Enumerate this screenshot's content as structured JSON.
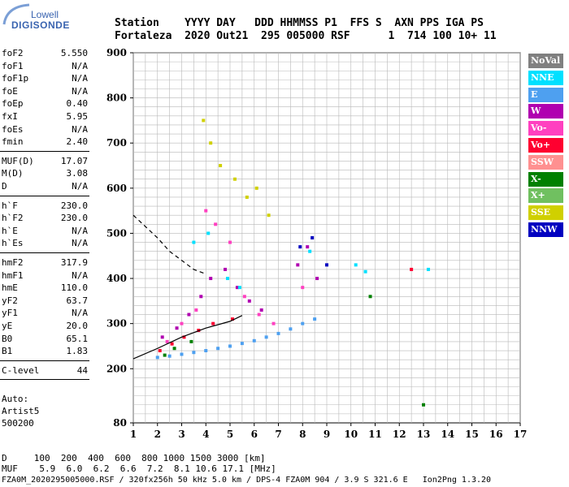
{
  "logo": {
    "line1": "Lowell",
    "line2": "DIGISONDE"
  },
  "header": {
    "labels_line": "Station    YYYY DAY   DDD HHMMSS P1  FFS S  AXN PPS IGA PS",
    "values_line": "Fortaleza  2020 Out21  295 005000 RSF      1  714 100 10+ 11"
  },
  "params": [
    {
      "group": [
        {
          "name": "foF2",
          "value": "5.550"
        },
        {
          "name": "foF1",
          "value": "N/A"
        },
        {
          "name": "foF1p",
          "value": "N/A"
        },
        {
          "name": "foE",
          "value": "N/A"
        },
        {
          "name": "foEp",
          "value": "0.40"
        },
        {
          "name": "fxI",
          "value": "5.95"
        },
        {
          "name": "foEs",
          "value": "N/A"
        },
        {
          "name": "fmin",
          "value": "2.40"
        }
      ]
    },
    {
      "group": [
        {
          "name": "MUF(D)",
          "value": "17.07"
        },
        {
          "name": "M(D)",
          "value": "3.08"
        },
        {
          "name": "D",
          "value": "N/A"
        }
      ]
    },
    {
      "group": [
        {
          "name": "h`F",
          "value": "230.0"
        },
        {
          "name": "h`F2",
          "value": "230.0"
        },
        {
          "name": "h`E",
          "value": "N/A"
        },
        {
          "name": "h`Es",
          "value": "N/A"
        }
      ]
    },
    {
      "group": [
        {
          "name": "hmF2",
          "value": "317.9"
        },
        {
          "name": "hmF1",
          "value": "N/A"
        },
        {
          "name": "hmE",
          "value": "110.0"
        },
        {
          "name": "yF2",
          "value": "63.7"
        },
        {
          "name": "yF1",
          "value": "N/A"
        },
        {
          "name": "yE",
          "value": "20.0"
        },
        {
          "name": "B0",
          "value": "65.1"
        },
        {
          "name": "B1",
          "value": "1.83"
        }
      ]
    },
    {
      "group": [
        {
          "name": "C-level",
          "value": "44"
        }
      ]
    }
  ],
  "auto": {
    "line1": "Auto:",
    "line2": "Artist5",
    "line3": "500200"
  },
  "legend": [
    {
      "label": "NoVal",
      "color": "#808080"
    },
    {
      "label": "NNE",
      "color": "#00e0ff"
    },
    {
      "label": "E",
      "color": "#4ea0f0"
    },
    {
      "label": "W",
      "color": "#b000b0"
    },
    {
      "label": "Vo-",
      "color": "#ff40c0"
    },
    {
      "label": "Vo+",
      "color": "#ff0030"
    },
    {
      "label": "SSW",
      "color": "#ff9090"
    },
    {
      "label": "X-",
      "color": "#008000"
    },
    {
      "label": "X+",
      "color": "#70c060"
    },
    {
      "label": "SSE",
      "color": "#d0d000"
    },
    {
      "label": "NNW",
      "color": "#0000c0"
    }
  ],
  "chart_data": {
    "type": "scatter",
    "title": "",
    "xlabel": "",
    "ylabel": "",
    "xlim": [
      1,
      17
    ],
    "ylim": [
      80,
      900
    ],
    "x_ticks": [
      "1",
      "2",
      "3",
      "4",
      "5",
      "6",
      "7",
      "8",
      "9",
      "10",
      "11",
      "12",
      "13",
      "14",
      "15",
      "16",
      "17"
    ],
    "y_ticks": [
      {
        "value": 80,
        "label": "80"
      },
      {
        "value": 200,
        "label": "200"
      },
      {
        "value": 300,
        "label": "300"
      },
      {
        "value": 400,
        "label": "400"
      },
      {
        "value": 500,
        "label": "500"
      },
      {
        "value": 600,
        "label": "600"
      },
      {
        "value": 700,
        "label": "700"
      },
      {
        "value": 800,
        "label": "800"
      },
      {
        "value": 900,
        "label": "900"
      }
    ],
    "grid": true,
    "legend_position": "right",
    "series": [
      {
        "color": "#4ea0f0",
        "points": [
          [
            2.0,
            225
          ],
          [
            2.5,
            228
          ],
          [
            3.0,
            232
          ],
          [
            3.5,
            236
          ],
          [
            4.0,
            240
          ],
          [
            4.5,
            245
          ],
          [
            5.0,
            250
          ],
          [
            5.5,
            256
          ],
          [
            6.0,
            262
          ],
          [
            6.5,
            270
          ],
          [
            7.0,
            278
          ],
          [
            7.5,
            288
          ],
          [
            8.0,
            300
          ],
          [
            8.5,
            310
          ]
        ]
      },
      {
        "color": "#b000b0",
        "points": [
          [
            2.2,
            270
          ],
          [
            2.8,
            290
          ],
          [
            3.3,
            320
          ],
          [
            3.8,
            360
          ],
          [
            4.2,
            400
          ],
          [
            4.8,
            420
          ],
          [
            5.3,
            380
          ],
          [
            5.8,
            350
          ],
          [
            6.3,
            330
          ],
          [
            7.8,
            430
          ],
          [
            8.2,
            470
          ],
          [
            8.6,
            400
          ]
        ]
      },
      {
        "color": "#ff40c0",
        "points": [
          [
            2.4,
            260
          ],
          [
            3.0,
            300
          ],
          [
            3.6,
            330
          ],
          [
            4.0,
            550
          ],
          [
            4.4,
            520
          ],
          [
            5.0,
            480
          ],
          [
            5.6,
            360
          ],
          [
            6.2,
            320
          ],
          [
            6.8,
            300
          ],
          [
            8.0,
            380
          ]
        ]
      },
      {
        "color": "#ff0030",
        "points": [
          [
            2.1,
            240
          ],
          [
            2.6,
            255
          ],
          [
            3.1,
            270
          ],
          [
            3.7,
            285
          ],
          [
            4.3,
            300
          ],
          [
            5.1,
            310
          ],
          [
            12.5,
            420
          ]
        ]
      },
      {
        "color": "#00e0ff",
        "points": [
          [
            3.5,
            480
          ],
          [
            4.1,
            500
          ],
          [
            4.9,
            400
          ],
          [
            5.4,
            380
          ],
          [
            8.3,
            460
          ],
          [
            10.2,
            430
          ],
          [
            10.6,
            415
          ],
          [
            13.2,
            420
          ]
        ]
      },
      {
        "color": "#d0d000",
        "points": [
          [
            3.9,
            750
          ],
          [
            4.2,
            700
          ],
          [
            4.6,
            650
          ],
          [
            5.2,
            620
          ],
          [
            5.7,
            580
          ],
          [
            6.1,
            600
          ],
          [
            6.6,
            540
          ]
        ]
      },
      {
        "color": "#0000c0",
        "points": [
          [
            7.9,
            470
          ],
          [
            8.4,
            490
          ],
          [
            9.0,
            430
          ]
        ]
      },
      {
        "color": "#008000",
        "points": [
          [
            2.3,
            230
          ],
          [
            2.7,
            245
          ],
          [
            3.4,
            260
          ],
          [
            10.8,
            360
          ],
          [
            13.0,
            120
          ]
        ]
      }
    ],
    "lines": [
      {
        "name": "",
        "color": "#000000",
        "style": "dashed",
        "points": [
          [
            1.0,
            540
          ],
          [
            1.5,
            515
          ],
          [
            2.0,
            490
          ],
          [
            2.5,
            460
          ],
          [
            3.0,
            440
          ],
          [
            3.5,
            420
          ],
          [
            4.0,
            410
          ]
        ]
      },
      {
        "name": "",
        "color": "#000000",
        "style": "solid",
        "points": [
          [
            1.0,
            222
          ],
          [
            2.0,
            245
          ],
          [
            3.0,
            270
          ],
          [
            4.0,
            290
          ],
          [
            5.0,
            305
          ],
          [
            5.5,
            318
          ]
        ]
      }
    ]
  },
  "bottom": {
    "line1": "D     100  200  400  600  800 1000 1500 3000 [km]",
    "line2": "MUF    5.9  6.0  6.2  6.6  7.2  8.1 10.6 17.1 [MHz]",
    "line3": "FZA0M_2020295005000.RSF / 320fx256h 50 kHz 5.0 km / DPS-4 FZA0M 904 / 3.9 S 321.6 E   Ion2Png 1.3.20"
  }
}
